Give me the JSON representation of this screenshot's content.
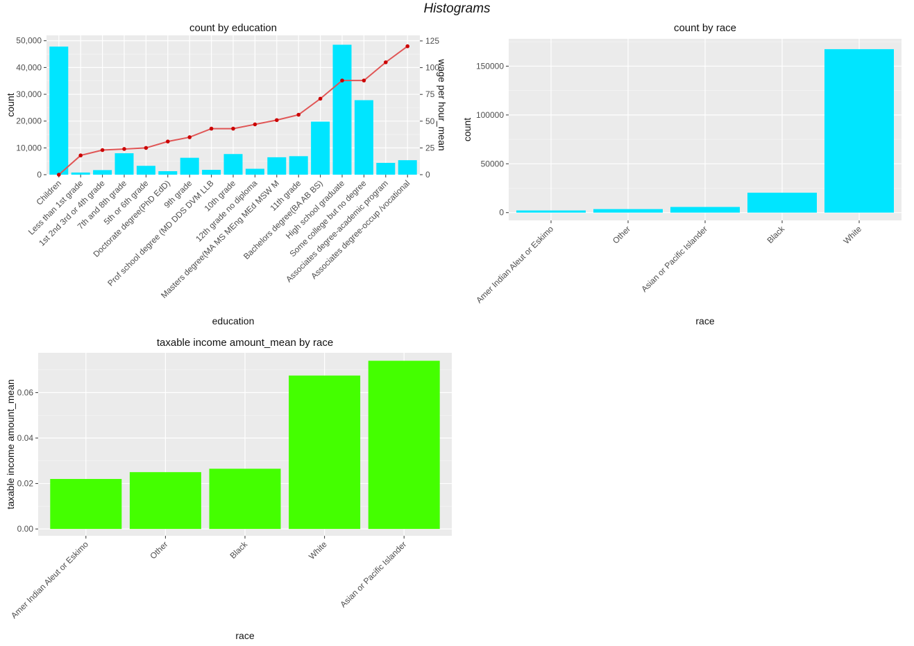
{
  "page": {
    "title": "Histograms"
  },
  "chart_data": [
    {
      "type": "bar",
      "title": "count by education",
      "xlabel": "education",
      "ylabel": "count",
      "y2label": "wage per hour_mean",
      "categories": [
        "Children",
        "Less than 1st grade",
        "1st 2nd 3rd or 4th grade",
        "7th and 8th grade",
        "5th or 6th grade",
        "Doctorate degree(PhD EdD)",
        "9th grade",
        "Prof school degree (MD DDS DVM LLB",
        "10th grade",
        "12th grade no diploma",
        "Masters degree(MA MS MEng MEd MSW M",
        "11th grade",
        "Bachelors degree(BA AB BS)",
        "High school graduate",
        "Some college but no degree",
        "Associates degree-academic program",
        "Associates degree-occup /vocational"
      ],
      "series": [
        {
          "values": [
            47800,
            800,
            1700,
            8000,
            3300,
            1300,
            6300,
            1800,
            7700,
            2200,
            6500,
            6900,
            19800,
            48500,
            27800,
            4400,
            5400
          ],
          "color": "#00E5FF"
        },
        {
          "values": [
            0,
            18,
            23,
            24,
            25,
            31,
            35,
            43,
            43,
            47,
            51,
            56,
            71,
            88,
            88,
            105,
            120
          ],
          "color": "#CC0000",
          "line_color": "#E05555"
        }
      ],
      "ylim": [
        0,
        52000
      ],
      "y_ticks": [
        0,
        10000,
        20000,
        30000,
        40000,
        50000
      ],
      "y_tick_labels": [
        "0",
        "10,000",
        "20,000",
        "30,000",
        "40,000",
        "50,000"
      ],
      "y2lim": [
        0,
        125
      ],
      "y2_ticks": [
        0,
        25,
        50,
        75,
        100,
        125
      ],
      "y2_tick_labels": [
        "0",
        "25",
        "50",
        "75",
        "100",
        "125"
      ],
      "grid": true
    },
    {
      "type": "bar",
      "title": "count by race",
      "xlabel": "race",
      "ylabel": "count",
      "categories": [
        "Amer Indian Aleut or Eskimo",
        "Other",
        "Asian or Pacific Islander",
        "Black",
        "White"
      ],
      "series": [
        {
          "values": [
            2200,
            3600,
            5800,
            20400,
            167400
          ],
          "color": "#00E5FF"
        }
      ],
      "ylim": [
        -8000,
        178000
      ],
      "y_ticks": [
        0,
        50000,
        100000,
        150000
      ],
      "y_tick_labels": [
        "0",
        "50000",
        "100000",
        "150000"
      ],
      "grid": true
    },
    {
      "type": "bar",
      "title": "taxable income amount_mean by race",
      "xlabel": "race",
      "ylabel": "taxable income amount_mean",
      "categories": [
        "Amer Indian Aleut or Eskimo",
        "Other",
        "Black",
        "White",
        "Asian or Pacific Islander"
      ],
      "series": [
        {
          "values": [
            0.022,
            0.025,
            0.0265,
            0.0675,
            0.074
          ],
          "color": "#44FF00"
        }
      ],
      "ylim": [
        -0.003,
        0.0775
      ],
      "y_ticks": [
        0,
        0.02,
        0.04,
        0.06
      ],
      "y_tick_labels": [
        "0.00",
        "0.02",
        "0.04",
        "0.06"
      ],
      "grid": true
    }
  ]
}
